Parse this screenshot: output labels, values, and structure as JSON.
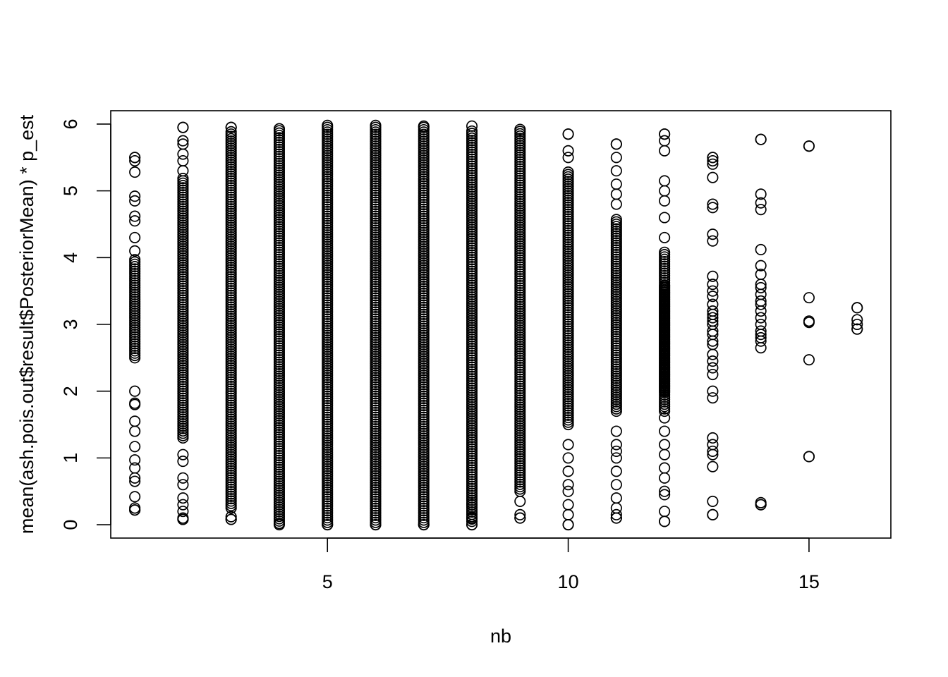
{
  "chart_data": {
    "type": "scatter",
    "title": "",
    "xlabel": "nb",
    "ylabel": "mean(ash.pois.out$result$PosteriorMean) * p_est",
    "xlim": [
      0.5,
      16.7
    ],
    "ylim": [
      -0.2,
      6.2
    ],
    "x_ticks": [
      5,
      10,
      15
    ],
    "y_ticks": [
      0,
      1,
      2,
      3,
      4,
      5,
      6
    ],
    "grid": false,
    "legend": "none",
    "marker": "open-circle",
    "point_color": "#000000",
    "columns": [
      {
        "x": 1,
        "min": 0.22,
        "max": 5.5,
        "dense": [
          [
            2.5,
            4.0
          ]
        ],
        "extra": [
          0.22,
          0.25,
          0.42,
          0.65,
          0.7,
          0.85,
          0.97,
          1.17,
          1.4,
          1.55,
          1.8,
          1.82,
          2.0,
          4.1,
          4.3,
          4.55,
          4.62,
          4.85,
          4.92,
          5.28,
          5.45,
          5.5
        ]
      },
      {
        "x": 2,
        "min": 0.08,
        "max": 5.95,
        "dense": [
          [
            1.3,
            5.2
          ]
        ],
        "extra": [
          0.08,
          0.1,
          0.2,
          0.3,
          0.4,
          0.6,
          0.7,
          0.95,
          1.05,
          5.3,
          5.45,
          5.55,
          5.7,
          5.75,
          5.95
        ]
      },
      {
        "x": 3,
        "min": 0.08,
        "max": 5.95,
        "dense": [
          [
            0.25,
            5.9
          ]
        ],
        "extra": [
          0.08,
          0.12,
          5.95
        ]
      },
      {
        "x": 4,
        "min": 0.0,
        "max": 5.93,
        "dense": [
          [
            0.02,
            5.9
          ]
        ],
        "extra": []
      },
      {
        "x": 5,
        "min": 0.0,
        "max": 5.98,
        "dense": [
          [
            0.0,
            5.98
          ]
        ],
        "extra": []
      },
      {
        "x": 6,
        "min": 0.0,
        "max": 5.98,
        "dense": [
          [
            0.0,
            5.98
          ]
        ],
        "extra": []
      },
      {
        "x": 7,
        "min": 0.0,
        "max": 5.97,
        "dense": [
          [
            0.0,
            5.97
          ]
        ],
        "extra": []
      },
      {
        "x": 8,
        "min": 0.0,
        "max": 5.97,
        "dense": [
          [
            0.05,
            5.9
          ]
        ],
        "extra": [
          0.0,
          0.1,
          0.3
        ]
      },
      {
        "x": 9,
        "min": 0.1,
        "max": 5.92,
        "dense": [
          [
            0.5,
            5.9
          ]
        ],
        "extra": [
          0.1,
          0.15,
          0.35
        ]
      },
      {
        "x": 10,
        "min": 0.0,
        "max": 5.85,
        "dense": [
          [
            1.5,
            5.3
          ]
        ],
        "extra": [
          0.0,
          0.15,
          0.3,
          0.5,
          0.6,
          0.8,
          1.0,
          1.2,
          5.5,
          5.6,
          5.85
        ]
      },
      {
        "x": 11,
        "min": 0.1,
        "max": 5.7,
        "dense": [
          [
            1.7,
            4.6
          ]
        ],
        "extra": [
          0.1,
          0.15,
          0.25,
          0.4,
          0.6,
          0.8,
          1.0,
          1.1,
          1.2,
          1.4,
          4.8,
          4.95,
          5.1,
          5.3,
          5.5,
          5.7
        ]
      },
      {
        "x": 12,
        "min": 0.05,
        "max": 5.85,
        "dense": [
          [
            1.7,
            4.1
          ],
          [
            2.0,
            3.6
          ]
        ],
        "extra": [
          0.05,
          0.2,
          0.45,
          0.5,
          0.7,
          0.85,
          1.05,
          1.2,
          1.4,
          1.6,
          4.3,
          4.6,
          4.85,
          5.0,
          5.15,
          5.6,
          5.75,
          5.85
        ]
      },
      {
        "x": 13,
        "min": 0.15,
        "max": 5.5,
        "extra": [
          0.15,
          0.35,
          0.87,
          1.05,
          1.1,
          1.2,
          1.3,
          1.9,
          2.0,
          2.25,
          2.35,
          2.45,
          2.55,
          2.7,
          2.75,
          2.85,
          2.9,
          3.0,
          3.05,
          3.1,
          3.15,
          3.2,
          3.3,
          3.42,
          3.5,
          3.6,
          3.72,
          4.25,
          4.35,
          4.75,
          4.8,
          5.2,
          5.4,
          5.45,
          5.5
        ]
      },
      {
        "x": 14,
        "min": 0.3,
        "max": 5.77,
        "extra": [
          0.3,
          0.33,
          2.65,
          2.75,
          2.8,
          2.85,
          2.9,
          3.0,
          3.1,
          3.2,
          3.3,
          3.35,
          3.45,
          3.55,
          3.6,
          3.75,
          3.88,
          4.12,
          4.72,
          4.82,
          4.95,
          5.77
        ]
      },
      {
        "x": 15,
        "min": 1.02,
        "max": 5.67,
        "extra": [
          1.02,
          2.47,
          3.03,
          3.05,
          3.4,
          5.67
        ]
      },
      {
        "x": 16,
        "min": 2.93,
        "max": 3.25,
        "extra": [
          2.93,
          3.0,
          3.07,
          3.25
        ]
      }
    ]
  }
}
